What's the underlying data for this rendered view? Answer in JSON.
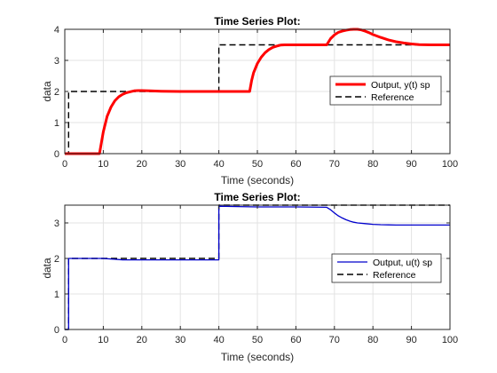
{
  "chart_data": [
    {
      "type": "line",
      "title": "Time Series Plot:",
      "xlabel": "Time (seconds)",
      "ylabel": "data",
      "xlim": [
        0,
        100
      ],
      "ylim": [
        0,
        4
      ],
      "xticks": [
        0,
        10,
        20,
        30,
        40,
        50,
        60,
        70,
        80,
        90,
        100
      ],
      "yticks": [
        0,
        1,
        2,
        3,
        4
      ],
      "grid": true,
      "legend_position": "center-right",
      "series": [
        {
          "name": "Output, y(t) sp",
          "color": "#ff0000",
          "style": "solid",
          "x": [
            0,
            9,
            10,
            11,
            12,
            13,
            14,
            15,
            16,
            17,
            18,
            19,
            20,
            22,
            25,
            30,
            35,
            40,
            45,
            48,
            48.5,
            49,
            50,
            51,
            52,
            53,
            54,
            55,
            56,
            57,
            58,
            60,
            65,
            68,
            69,
            70,
            71,
            72,
            73,
            74,
            75,
            76,
            77,
            78,
            79,
            80,
            82,
            84,
            86,
            88,
            90,
            92,
            95,
            100
          ],
          "y": [
            0,
            0,
            0.7,
            1.2,
            1.5,
            1.7,
            1.83,
            1.91,
            1.96,
            1.99,
            2.02,
            2.03,
            2.03,
            2.02,
            2.01,
            2.0,
            2.0,
            2.0,
            2.0,
            2.0,
            2.35,
            2.6,
            2.9,
            3.1,
            3.25,
            3.35,
            3.42,
            3.46,
            3.49,
            3.5,
            3.5,
            3.5,
            3.5,
            3.5,
            3.7,
            3.82,
            3.9,
            3.94,
            3.97,
            3.99,
            4.0,
            4.0,
            3.98,
            3.94,
            3.89,
            3.83,
            3.74,
            3.66,
            3.6,
            3.56,
            3.53,
            3.51,
            3.5,
            3.5
          ]
        },
        {
          "name": "Reference",
          "color": "#000000",
          "style": "dashed",
          "x": [
            0,
            1,
            1,
            40,
            40,
            100
          ],
          "y": [
            0,
            0,
            2,
            2,
            3.5,
            3.5
          ]
        }
      ]
    },
    {
      "type": "line",
      "title": "Time Series Plot:",
      "xlabel": "Time (seconds)",
      "ylabel": "data",
      "xlim": [
        0,
        100
      ],
      "ylim": [
        0,
        3.5
      ],
      "xticks": [
        0,
        10,
        20,
        30,
        40,
        50,
        60,
        70,
        80,
        90,
        100
      ],
      "yticks": [
        0,
        1,
        2,
        3
      ],
      "grid": true,
      "legend_position": "center-right",
      "series": [
        {
          "name": "Output, u(t) sp",
          "color": "#0000cc",
          "style": "solid",
          "x": [
            0,
            1,
            1,
            5,
            10,
            15,
            20,
            30,
            40,
            40,
            45,
            50,
            60,
            68,
            69,
            70,
            71,
            72,
            73,
            74,
            75,
            76,
            78,
            80,
            82,
            84,
            86,
            88,
            90,
            95,
            100
          ],
          "y": [
            0,
            0,
            2,
            2,
            2,
            1.96,
            1.96,
            1.96,
            1.96,
            3.47,
            3.46,
            3.45,
            3.45,
            3.44,
            3.37,
            3.28,
            3.2,
            3.14,
            3.09,
            3.05,
            3.02,
            3.0,
            2.98,
            2.96,
            2.95,
            2.945,
            2.94,
            2.94,
            2.94,
            2.94,
            2.94
          ]
        },
        {
          "name": "Reference",
          "color": "#000000",
          "style": "dashed",
          "x": [
            0,
            1,
            1,
            40,
            40,
            100
          ],
          "y": [
            0,
            0,
            2,
            2,
            3.5,
            3.5
          ]
        }
      ]
    }
  ]
}
